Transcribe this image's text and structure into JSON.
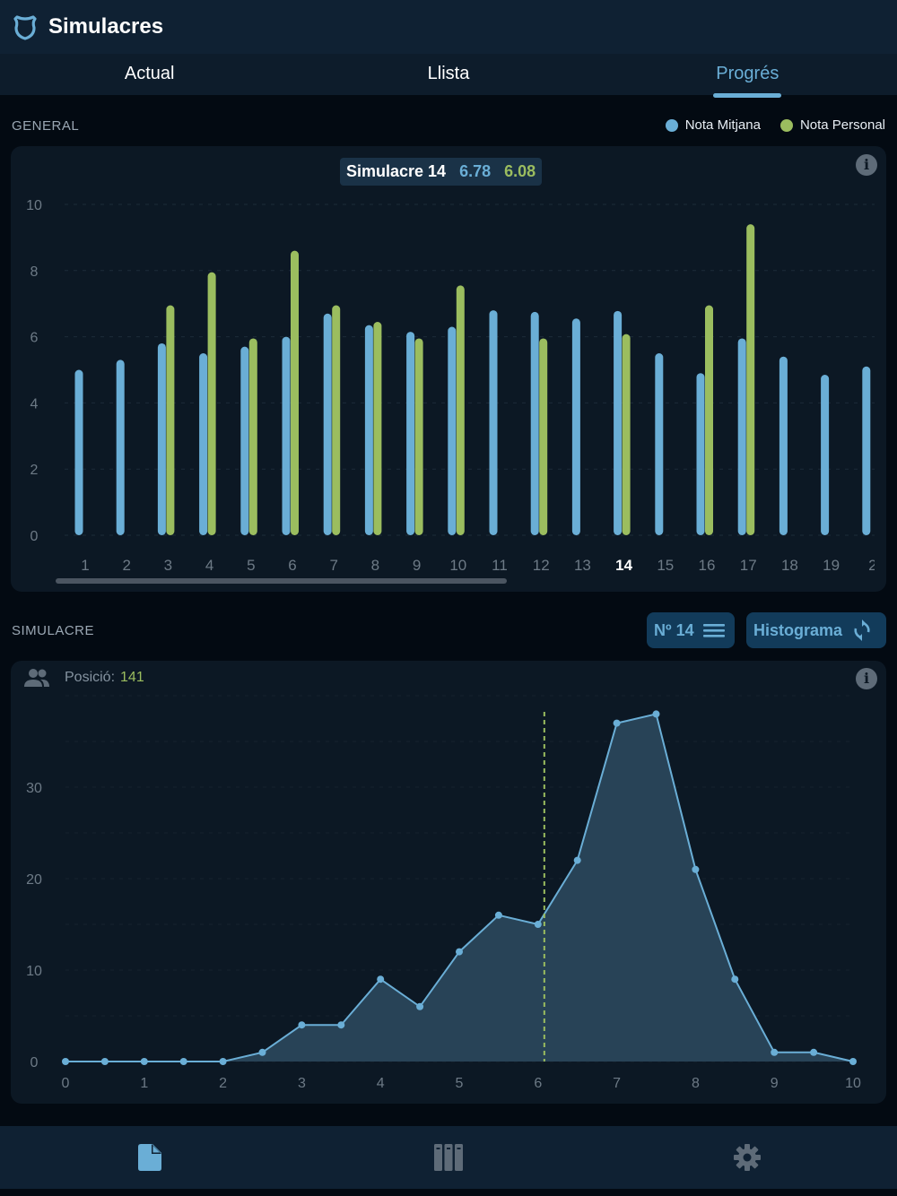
{
  "header": {
    "title": "Simulacres",
    "logo_icon": "shield-icon"
  },
  "tabs": [
    {
      "label": "Actual",
      "active": false
    },
    {
      "label": "Llista",
      "active": false
    },
    {
      "label": "Progrés",
      "active": true
    }
  ],
  "general": {
    "section_label": "GENERAL",
    "legend": [
      {
        "label": "Nota Mitjana",
        "color": "#6aaed6"
      },
      {
        "label": "Nota Personal",
        "color": "#9bbd5f"
      }
    ],
    "tooltip": {
      "label": "Simulacre 14",
      "avg": "6.78",
      "personal": "6.08"
    },
    "info_icon": "info-icon"
  },
  "simulacre": {
    "section_label": "SIMULACRE",
    "number_button": {
      "label": "Nº 14",
      "icon": "list-icon"
    },
    "mode_button": {
      "label": "Histograma",
      "icon": "refresh-icon"
    },
    "position": {
      "label": "Posició:",
      "value": "141",
      "icon": "users-icon"
    },
    "info_icon": "info-icon"
  },
  "bottom_nav": [
    {
      "icon": "document-icon",
      "active": true
    },
    {
      "icon": "library-icon",
      "active": false
    },
    {
      "icon": "gear-icon",
      "active": false
    }
  ],
  "chart_data": [
    {
      "type": "bar",
      "title": "",
      "categories": [
        "1",
        "2",
        "3",
        "4",
        "5",
        "6",
        "7",
        "8",
        "9",
        "10",
        "11",
        "12",
        "13",
        "14",
        "15",
        "16",
        "17",
        "18",
        "19",
        "2"
      ],
      "highlighted_category": "14",
      "series": [
        {
          "name": "Nota Mitjana",
          "color": "#6aaed6",
          "values": [
            5.0,
            5.3,
            5.8,
            5.5,
            5.7,
            6.0,
            6.7,
            6.35,
            6.15,
            6.3,
            6.8,
            6.75,
            6.55,
            6.78,
            5.5,
            4.9,
            5.95,
            5.4,
            4.85,
            5.1
          ]
        },
        {
          "name": "Nota Personal",
          "color": "#9bbd5f",
          "values": [
            null,
            null,
            6.95,
            7.95,
            5.95,
            8.6,
            6.95,
            6.45,
            5.95,
            7.55,
            null,
            5.95,
            null,
            6.08,
            null,
            6.95,
            9.4,
            null,
            null,
            null
          ]
        }
      ],
      "y_ticks": [
        0,
        2,
        4,
        6,
        8,
        10
      ],
      "ylim": [
        0,
        10
      ],
      "grid": true,
      "legend_position": "top-right",
      "scrollable": true
    },
    {
      "type": "area",
      "title": "",
      "x": [
        0,
        0.5,
        1,
        1.5,
        2,
        2.5,
        3,
        3.5,
        4,
        4.5,
        5,
        5.5,
        6,
        6.5,
        7,
        7.5,
        8,
        8.5,
        9,
        9.5,
        10
      ],
      "series": [
        {
          "name": "",
          "color": "#6aaed6",
          "values": [
            0,
            0,
            0,
            0,
            0,
            1,
            4,
            4,
            9,
            6,
            12,
            16,
            15,
            22,
            37,
            38,
            21,
            9,
            1,
            1,
            0
          ]
        }
      ],
      "x_ticks": [
        0,
        1,
        2,
        3,
        4,
        5,
        6,
        7,
        8,
        9,
        10
      ],
      "y_ticks": [
        0,
        10,
        20,
        30
      ],
      "xlim": [
        0,
        10
      ],
      "ylim": [
        0,
        40
      ],
      "marker_x": 6.08,
      "marker_color": "#9bbd5f",
      "grid": true
    }
  ]
}
